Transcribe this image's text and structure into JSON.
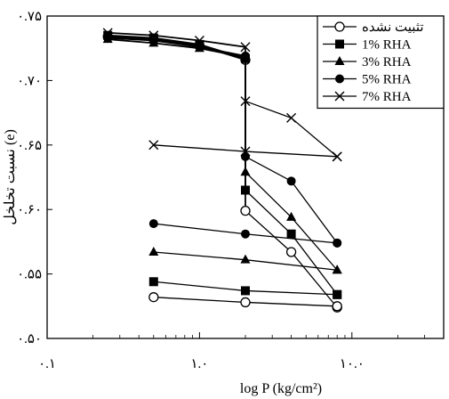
{
  "chart_data": {
    "type": "scatter",
    "title": "",
    "xlabel": "log P (kg/cm²)",
    "ylabel": "نسبت تخلخل (e)",
    "xscale": "log",
    "xlim": [
      0.1,
      40
    ],
    "ylim": [
      0.5,
      0.75
    ],
    "x_ticks": [
      {
        "value": 0.1,
        "label": "۰.۱"
      },
      {
        "value": 1,
        "label": "۱.۰"
      },
      {
        "value": 10,
        "label": "۱۰.۰"
      }
    ],
    "y_ticks": [
      {
        "value": 0.5,
        "label": "۰.۵۰"
      },
      {
        "value": 0.55,
        "label": "۰.۵۵"
      },
      {
        "value": 0.6,
        "label": "۰.۶۰"
      },
      {
        "value": 0.65,
        "label": "۰.۶۵"
      },
      {
        "value": 0.7,
        "label": "۰.۷۰"
      },
      {
        "value": 0.75,
        "label": "۰.۷۵"
      }
    ],
    "legend_position": "top-right",
    "grid": false,
    "series": [
      {
        "name": "تثبیت نشده",
        "marker": "circle-open",
        "loading": {
          "x": [
            0.25,
            0.5,
            1,
            2
          ],
          "y": [
            0.734,
            0.732,
            0.727,
            0.716
          ]
        },
        "drop": {
          "x": [
            2,
            2
          ],
          "y": [
            0.716,
            0.599
          ]
        },
        "unloading": [
          {
            "x": [
              2,
              4,
              8
            ],
            "y": [
              0.599,
              0.567,
              0.524
            ]
          },
          {
            "x": [
              0.5,
              2,
              8
            ],
            "y": [
              0.532,
              0.528,
              0.525
            ]
          }
        ]
      },
      {
        "name": "1% RHA",
        "marker": "square-filled",
        "loading": {
          "x": [
            0.25,
            0.5,
            1,
            2
          ],
          "y": [
            0.735,
            0.733,
            0.728,
            0.717
          ]
        },
        "drop": {
          "x": [
            2,
            2
          ],
          "y": [
            0.717,
            0.615
          ]
        },
        "unloading": [
          {
            "x": [
              2,
              4,
              8
            ],
            "y": [
              0.615,
              0.581,
              0.534
            ]
          },
          {
            "x": [
              0.5,
              2,
              8
            ],
            "y": [
              0.544,
              0.537,
              0.534
            ]
          }
        ]
      },
      {
        "name": "3% RHA",
        "marker": "triangle-filled",
        "loading": {
          "x": [
            0.25,
            0.5,
            1,
            2
          ],
          "y": [
            0.732,
            0.729,
            0.725,
            0.718
          ]
        },
        "drop": {
          "x": [
            2,
            2
          ],
          "y": [
            0.718,
            0.629
          ]
        },
        "unloading": [
          {
            "x": [
              2,
              4,
              8
            ],
            "y": [
              0.629,
              0.594,
              0.553
            ]
          },
          {
            "x": [
              0.5,
              2,
              8
            ],
            "y": [
              0.567,
              0.561,
              0.553
            ]
          }
        ]
      },
      {
        "name": "5% RHA",
        "marker": "circle-filled",
        "loading": {
          "x": [
            0.25,
            0.5,
            1,
            2
          ],
          "y": [
            0.733,
            0.731,
            0.726,
            0.719
          ]
        },
        "drop": {
          "x": [
            2,
            2
          ],
          "y": [
            0.719,
            0.641
          ]
        },
        "unloading": [
          {
            "x": [
              2,
              4,
              8
            ],
            "y": [
              0.641,
              0.622,
              0.574
            ]
          },
          {
            "x": [
              0.5,
              2,
              8
            ],
            "y": [
              0.589,
              0.581,
              0.574
            ]
          }
        ]
      },
      {
        "name": "7% RHA",
        "marker": "x",
        "loading": {
          "x": [
            0.25,
            0.5,
            1,
            2
          ],
          "y": [
            0.737,
            0.735,
            0.731,
            0.726
          ]
        },
        "drop": {
          "x": [
            2,
            2
          ],
          "y": [
            0.726,
            0.645
          ]
        },
        "unloading": [
          {
            "x": [
              2,
              4,
              8
            ],
            "y": [
              0.684,
              0.671,
              0.641
            ]
          },
          {
            "x": [
              0.5,
              2,
              8
            ],
            "y": [
              0.65,
              0.645,
              0.641
            ]
          }
        ]
      }
    ]
  }
}
